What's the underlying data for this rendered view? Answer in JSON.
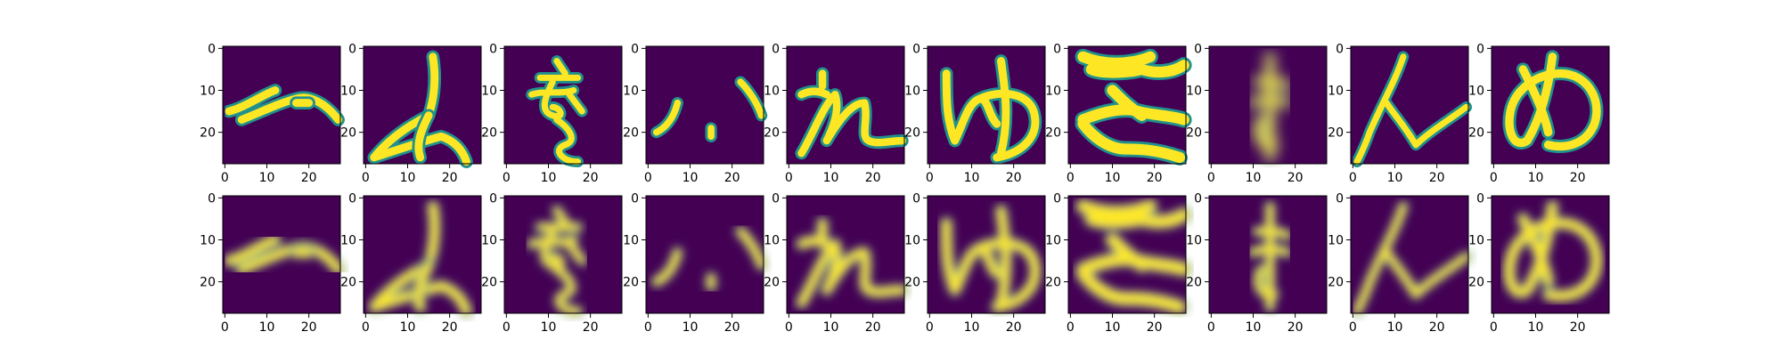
{
  "chart_data": {
    "type": "heatmap",
    "title": "",
    "xlabel": "",
    "ylabel": "",
    "grid": false,
    "colormap": "viridis",
    "image_size": [
      28,
      28
    ],
    "rows": 2,
    "cols": 10,
    "xlim": [
      -0.5,
      27.5
    ],
    "ylim": [
      27.5,
      -0.5
    ],
    "xticks": [
      0,
      10,
      20
    ],
    "yticks": [
      0,
      10,
      20
    ],
    "xtick_labels": [
      "0",
      "10",
      "20"
    ],
    "ytick_labels": [
      "0",
      "10",
      "20"
    ],
    "panels": [
      {
        "row": 1,
        "col": 1,
        "glyph": "へ"
      },
      {
        "row": 1,
        "col": 2,
        "glyph": "よ"
      },
      {
        "row": 1,
        "col": 3,
        "glyph": "ゑ"
      },
      {
        "row": 1,
        "col": 4,
        "glyph": "ハ"
      },
      {
        "row": 1,
        "col": 5,
        "glyph": "れ"
      },
      {
        "row": 1,
        "col": 6,
        "glyph": "ゆ"
      },
      {
        "row": 1,
        "col": 7,
        "glyph": "ち"
      },
      {
        "row": 1,
        "col": 8,
        "glyph": "ま"
      },
      {
        "row": 1,
        "col": 9,
        "glyph": "ん"
      },
      {
        "row": 1,
        "col": 10,
        "glyph": "め"
      },
      {
        "row": 2,
        "col": 1,
        "glyph": "へ"
      },
      {
        "row": 2,
        "col": 2,
        "glyph": "よ"
      },
      {
        "row": 2,
        "col": 3,
        "glyph": "ゑ"
      },
      {
        "row": 2,
        "col": 4,
        "glyph": "ハ"
      },
      {
        "row": 2,
        "col": 5,
        "glyph": "れ"
      },
      {
        "row": 2,
        "col": 6,
        "glyph": "ゆ"
      },
      {
        "row": 2,
        "col": 7,
        "glyph": "ち"
      },
      {
        "row": 2,
        "col": 8,
        "glyph": "ま"
      },
      {
        "row": 2,
        "col": 9,
        "glyph": "ん"
      },
      {
        "row": 2,
        "col": 10,
        "glyph": "め"
      }
    ],
    "colors": {
      "background": "#440154",
      "stroke": "#fde725",
      "stroke_mid": "#21918c",
      "frame": "#000000"
    }
  }
}
